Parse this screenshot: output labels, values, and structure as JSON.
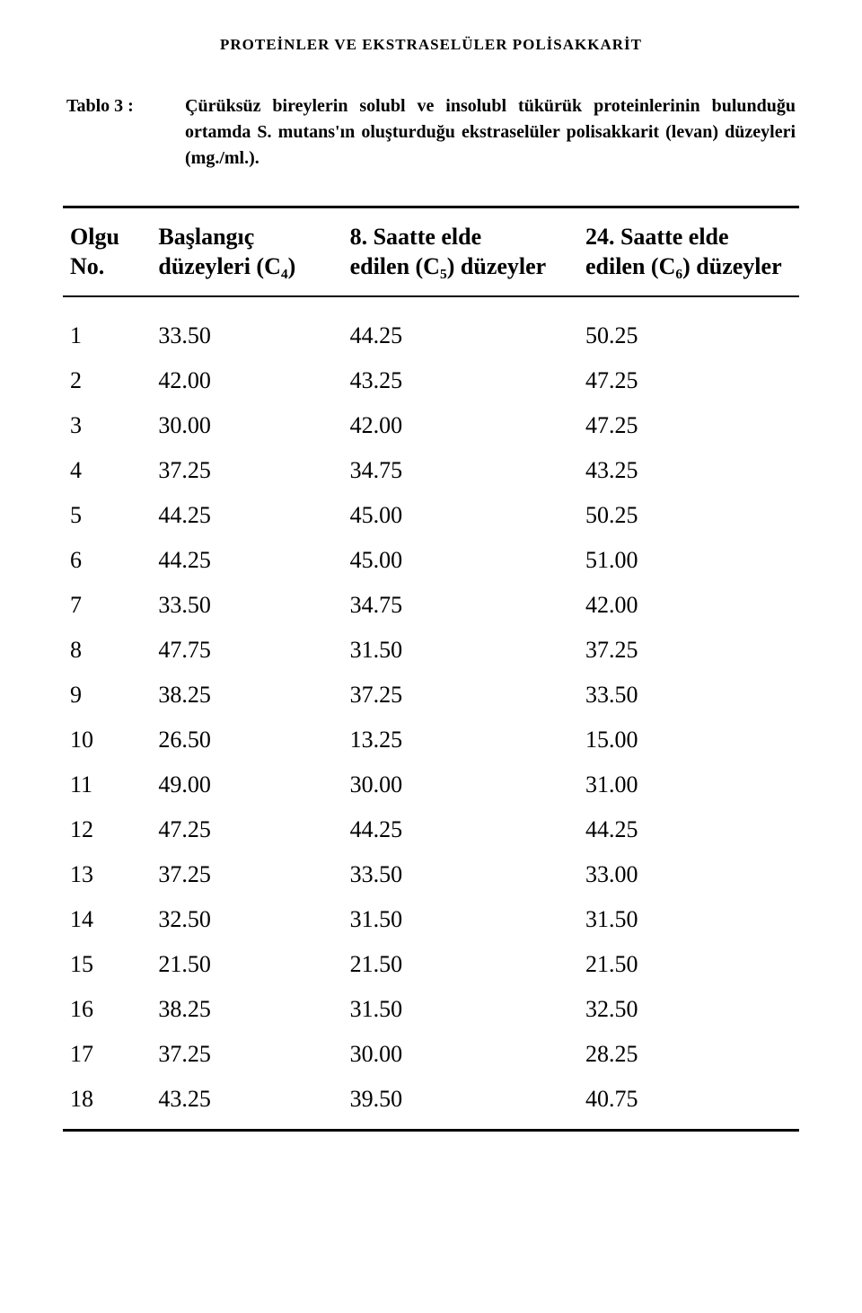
{
  "running_title": "PROTEİNLER VE EKSTRASELÜLER POLİSAKKARİT",
  "caption": {
    "label": "Tablo 3 :",
    "text": "Çürüksüz bireylerin solubl ve insolubl tükürük proteinlerinin bulunduğu ortamda S. mutans'ın oluşturduğu ekstraselüler polisakkarit (levan) düzeyleri (mg./ml.)."
  },
  "table": {
    "type": "table",
    "background_color": "#ffffff",
    "border_color": "#000000",
    "header_fontsize": 26,
    "body_fontsize": 26,
    "columns": [
      {
        "key": "no",
        "label": "Olgu\nNo."
      },
      {
        "key": "c4",
        "label": "Başlangıç\ndüzeyleri (C₄)"
      },
      {
        "key": "c5",
        "label": "8. Saatte elde\nedilen (C₅) düzeyler"
      },
      {
        "key": "c6",
        "label": "24. Saatte elde\nedilen (C₆) düzeyler"
      }
    ],
    "rows": [
      {
        "no": "1",
        "c4": "33.50",
        "c5": "44.25",
        "c6": "50.25"
      },
      {
        "no": "2",
        "c4": "42.00",
        "c5": "43.25",
        "c6": "47.25"
      },
      {
        "no": "3",
        "c4": "30.00",
        "c5": "42.00",
        "c6": "47.25"
      },
      {
        "no": "4",
        "c4": "37.25",
        "c5": "34.75",
        "c6": "43.25"
      },
      {
        "no": "5",
        "c4": "44.25",
        "c5": "45.00",
        "c6": "50.25"
      },
      {
        "no": "6",
        "c4": "44.25",
        "c5": "45.00",
        "c6": "51.00"
      },
      {
        "no": "7",
        "c4": "33.50",
        "c5": "34.75",
        "c6": "42.00"
      },
      {
        "no": "8",
        "c4": "47.75",
        "c5": "31.50",
        "c6": "37.25"
      },
      {
        "no": "9",
        "c4": "38.25",
        "c5": "37.25",
        "c6": "33.50"
      },
      {
        "no": "10",
        "c4": "26.50",
        "c5": "13.25",
        "c6": "15.00"
      },
      {
        "no": "11",
        "c4": "49.00",
        "c5": "30.00",
        "c6": "31.00"
      },
      {
        "no": "12",
        "c4": "47.25",
        "c5": "44.25",
        "c6": "44.25"
      },
      {
        "no": "13",
        "c4": "37.25",
        "c5": "33.50",
        "c6": "33.00"
      },
      {
        "no": "14",
        "c4": "32.50",
        "c5": "31.50",
        "c6": "31.50"
      },
      {
        "no": "15",
        "c4": "21.50",
        "c5": "21.50",
        "c6": "21.50"
      },
      {
        "no": "16",
        "c4": "38.25",
        "c5": "31.50",
        "c6": "32.50"
      },
      {
        "no": "17",
        "c4": "37.25",
        "c5": "30.00",
        "c6": "28.25"
      },
      {
        "no": "18",
        "c4": "43.25",
        "c5": "39.50",
        "c6": "40.75"
      }
    ]
  }
}
